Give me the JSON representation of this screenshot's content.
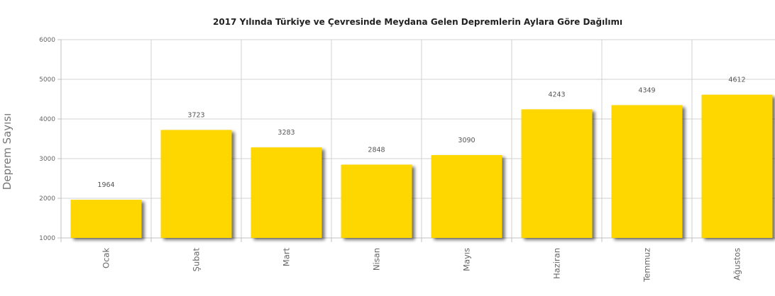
{
  "chart_data": {
    "type": "bar",
    "title": "2017 Yılında Türkiye ve Çevresinde Meydana Gelen Depremlerin Aylara Göre Dağılımı",
    "ylabel": "Deprem Sayısı",
    "xlabel": "",
    "categories": [
      "Ocak",
      "Şubat",
      "Mart",
      "Nisan",
      "Mayıs",
      "Haziran",
      "Temmuz",
      "Ağustos"
    ],
    "values": [
      1964,
      3723,
      3283,
      2848,
      3090,
      4243,
      4349,
      4612
    ],
    "ylim": [
      1000,
      6000
    ],
    "yticks": [
      1000,
      2000,
      3000,
      4000,
      5000,
      6000
    ],
    "grid": true,
    "legend": "none",
    "colors": {
      "bar": "#ffd700",
      "bar_shadow": "#9a9a9a",
      "grid": "#d0d0d0",
      "axis": "#c0c0c0"
    }
  }
}
